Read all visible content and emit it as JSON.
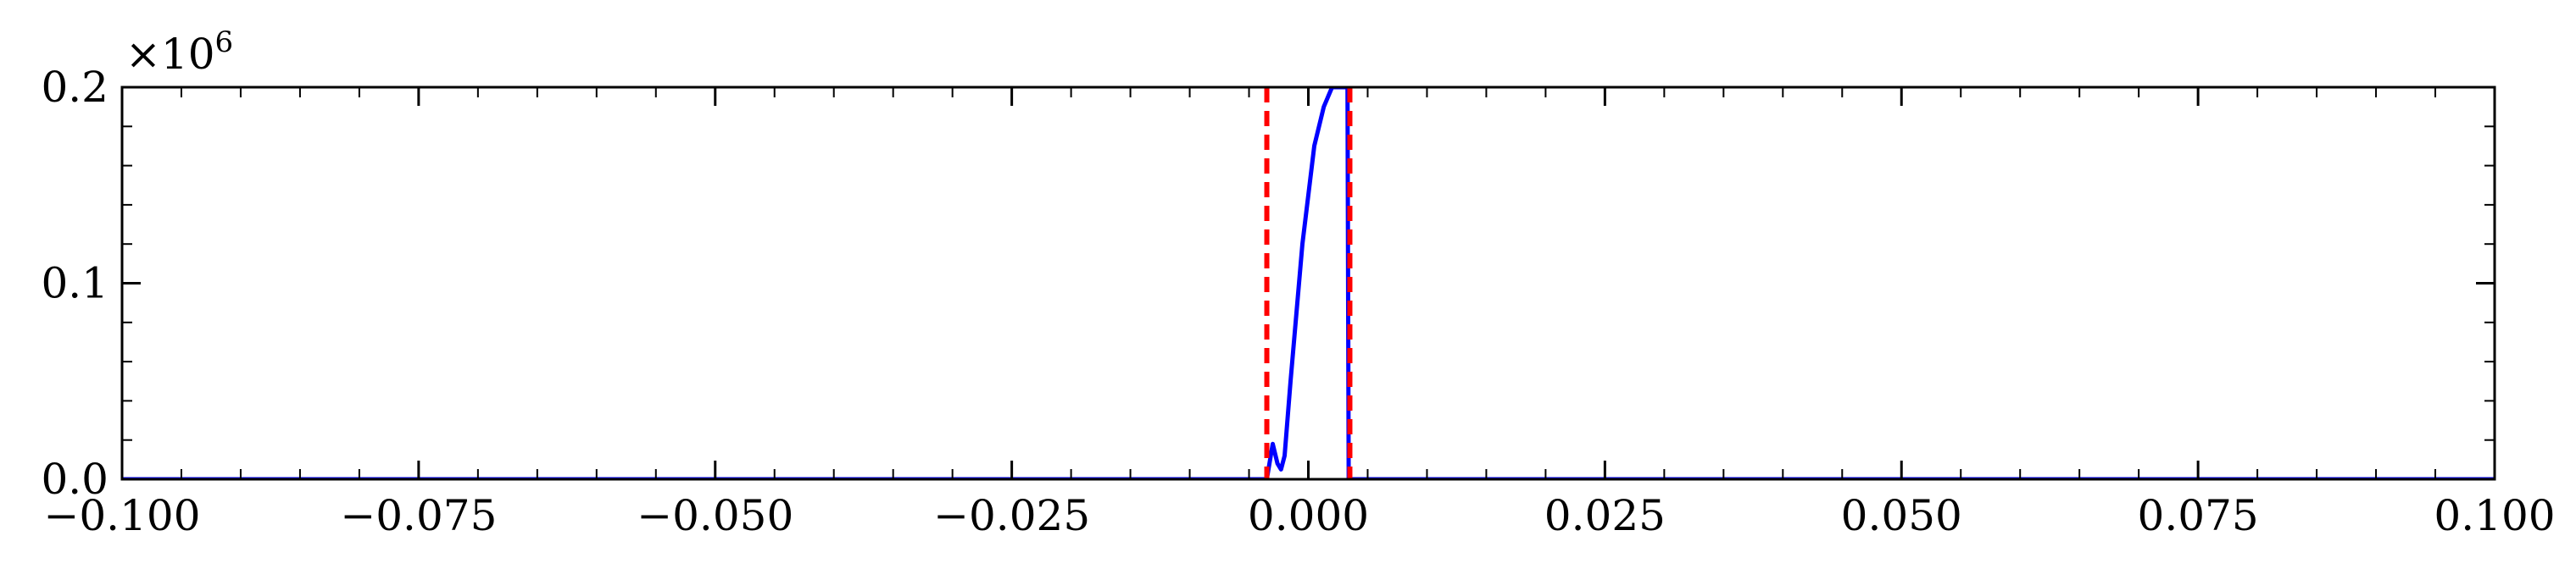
{
  "chart_data": {
    "type": "line",
    "title": "",
    "xlabel": "",
    "ylabel": "",
    "xlim": [
      -0.1,
      0.1
    ],
    "ylim": [
      0,
      0.2
    ],
    "y_multiplier": {
      "base": "×10",
      "exponent": "6"
    },
    "x_ticks": [
      -0.1,
      -0.075,
      -0.05,
      -0.025,
      0.0,
      0.025,
      0.05,
      0.075,
      0.1
    ],
    "x_tick_labels": [
      "−0.100",
      "−0.075",
      "−0.050",
      "−0.025",
      "0.000",
      "0.025",
      "0.050",
      "0.075",
      "0.100"
    ],
    "y_ticks": [
      0.0,
      0.1,
      0.2
    ],
    "y_tick_labels": [
      "0.0",
      "0.1",
      "0.2"
    ],
    "grid": false,
    "legend": "none",
    "series": [
      {
        "color": "#0000ff",
        "style": "solid",
        "x": [
          -0.1,
          -0.0035,
          -0.003,
          -0.0026,
          -0.0023,
          -0.002,
          -0.0015,
          -0.0005,
          0.0005,
          0.0013,
          0.002,
          0.0026,
          0.0031,
          0.0033,
          0.0034,
          0.0036,
          0.1
        ],
        "y": [
          0.0,
          0.0,
          0.018,
          0.008,
          0.005,
          0.012,
          0.05,
          0.12,
          0.17,
          0.19,
          0.2,
          0.2,
          0.2,
          0.2,
          0.0,
          0.0,
          0.0
        ]
      }
    ],
    "vlines": [
      {
        "x": -0.0035,
        "color": "#ff0000",
        "style": "dashed"
      },
      {
        "x": 0.0035,
        "color": "#ff0000",
        "style": "dashed"
      }
    ]
  }
}
